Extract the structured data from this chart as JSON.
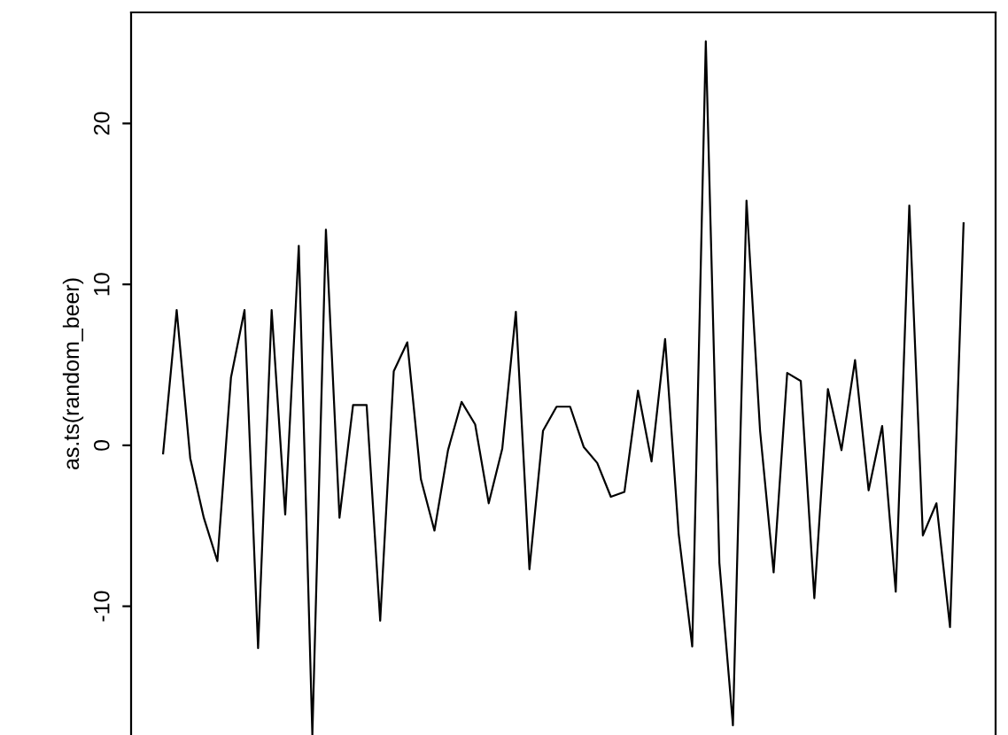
{
  "chart_data": {
    "type": "line",
    "ylabel": "as.ts(random_beer)",
    "categories": [
      null,
      null,
      null,
      null,
      null,
      null,
      null,
      null,
      null,
      null,
      null,
      null,
      null,
      null,
      null,
      null,
      null,
      null,
      null,
      null,
      null,
      null,
      null,
      null,
      null,
      null,
      null,
      null,
      null,
      null,
      null,
      null,
      null,
      null,
      null,
      null,
      null,
      null,
      null,
      null,
      null,
      null,
      null,
      null,
      null,
      null,
      null,
      null,
      null,
      null,
      null,
      null,
      null,
      null,
      null,
      null,
      null,
      null,
      null,
      null
    ],
    "series": [
      {
        "color": "#000000",
        "values": [
          -0.5,
          8.4,
          -0.8,
          -4.5,
          -7.2,
          4.2,
          8.4,
          -12.6,
          8.4,
          -4.3,
          12.4,
          -18,
          13.4,
          -4.5,
          2.5,
          2.5,
          -10.9,
          4.6,
          6.4,
          -2.1,
          -5.3,
          -0.3,
          2.7,
          1.3,
          -3.6,
          -0.2,
          8.3,
          -7.7,
          0.9,
          2.4,
          2.4,
          -0.1,
          -1.1,
          -3.2,
          -2.9,
          3.4,
          -1.0,
          6.6,
          -5.5,
          -12.5,
          25.1,
          -7.3,
          -17.4,
          15.2,
          0.9,
          -7.9,
          4.5,
          4.0,
          -9.5,
          3.5,
          -0.3,
          5.3,
          -2.8,
          1.2,
          -9.1,
          14.9,
          -5.6,
          -3.6,
          -11.3,
          13.8
        ]
      }
    ],
    "ylim": [
      -18,
      26.9
    ],
    "yticks": [
      -10,
      0,
      10,
      20
    ],
    "grid": false,
    "marker": "none",
    "line_style": "solid",
    "tick_labels": "y"
  }
}
